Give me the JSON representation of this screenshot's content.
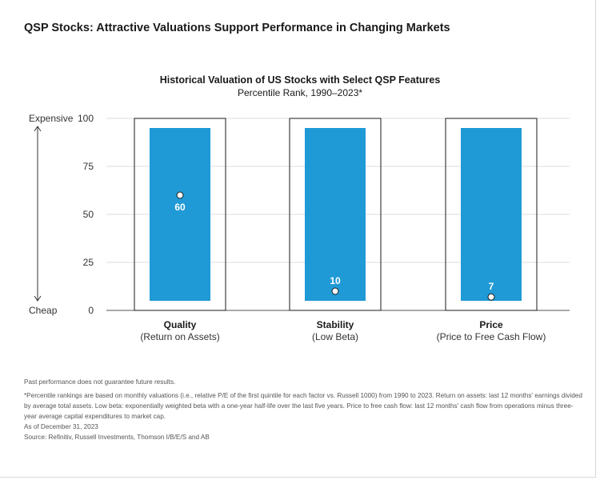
{
  "page": {
    "title": "QSP Stocks: Attractive Valuations Support Performance in Changing Markets"
  },
  "chart_data": {
    "type": "bar",
    "title": "Historical Valuation of US Stocks with Select QSP Features",
    "subtitle": "Percentile Rank, 1990–2023*",
    "ylim": [
      0,
      100
    ],
    "yticks": [
      0,
      25,
      50,
      75,
      100
    ],
    "y_top_label": "Expensive",
    "y_bottom_label": "Cheap",
    "range_low": 5,
    "range_high": 95,
    "categories": [
      "Quality",
      "Stability",
      "Price"
    ],
    "category_subtitles": [
      "(Return on Assets)",
      "(Low Beta)",
      "(Price to Free Cash Flow)"
    ],
    "values": [
      60,
      10,
      7
    ],
    "value_labels": [
      "60",
      "10",
      "7"
    ],
    "bar_color": "#1f9ad6",
    "grid": true
  },
  "footnotes": [
    "Past performance does not guarantee future results.",
    "*Percentile rankings are based on monthly valuations (i.e., relative P/E of the first quintile for each factor vs. Russell 1000) from 1990 to 2023. Return on assets: last 12 months' earnings divided by average total assets. Low beta: exponentially weighted beta with a one-year half-life over the last five years. Price to free cash flow: last 12 months' cash flow from operations minus three-year average capital expenditures to market cap.",
    "As of December 31, 2023",
    "Source: Refinitiv, Russell Investments, Thomson I/B/E/S and AB"
  ]
}
